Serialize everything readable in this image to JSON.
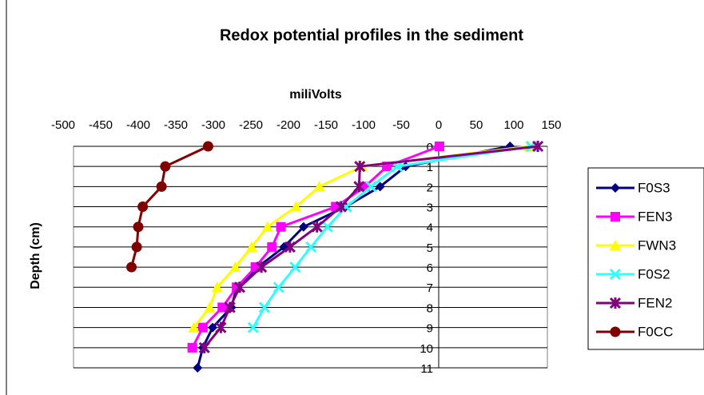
{
  "chart_data": {
    "type": "line",
    "title": "Redox potential profiles in the sediment",
    "x_label": "miliVolts",
    "y_label": "Depth (cm)",
    "categories": [
      0,
      1,
      2,
      3,
      4,
      5,
      6,
      7,
      8,
      9,
      10,
      11
    ],
    "xlim": [
      -500,
      150
    ],
    "xticks": [
      -500,
      -450,
      -400,
      -350,
      -300,
      -250,
      -200,
      -150,
      -100,
      -50,
      0,
      50,
      100,
      150
    ],
    "ylim": [
      0,
      11
    ],
    "grid": true,
    "legend": "right",
    "series": [
      {
        "name": "F0S3",
        "color": "#000080",
        "marker": "diamond",
        "values": [
          95,
          -44,
          -78,
          -124,
          -180,
          -206,
          -241,
          -269,
          -276,
          -301,
          -314,
          -321
        ]
      },
      {
        "name": "FEN3",
        "color": "#ff00ff",
        "marker": "square",
        "values": [
          1,
          -69,
          -98,
          -137,
          -210,
          -222,
          -244,
          -269,
          -288,
          -314,
          -328,
          null
        ]
      },
      {
        "name": "FWN3",
        "color": "#ffff00",
        "marker": "triangle",
        "values": [
          120,
          -102,
          -159,
          -190,
          -228,
          -249,
          -271,
          -295,
          -305,
          -326,
          null,
          null
        ]
      },
      {
        "name": "F0S2",
        "color": "#33ffff",
        "marker": "x",
        "values": [
          123,
          -55,
          -90,
          -123,
          -148,
          -170,
          -191,
          -213,
          -232,
          -247,
          null,
          null
        ]
      },
      {
        "name": "FEN2",
        "color": "#800080",
        "marker": "star",
        "values": [
          132,
          -105,
          -106,
          -130,
          -162,
          -198,
          -236,
          -265,
          -278,
          -290,
          -312,
          null
        ]
      },
      {
        "name": "F0CC",
        "color": "#800000",
        "marker": "circle",
        "values": [
          -307,
          -364,
          -369,
          -394,
          -400,
          -402,
          -409,
          null,
          null,
          null,
          null,
          null
        ]
      }
    ]
  }
}
